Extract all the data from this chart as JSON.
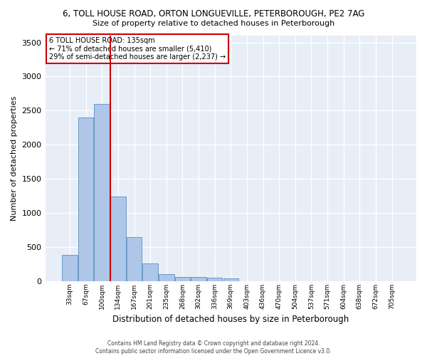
{
  "title_line1": "6, TOLL HOUSE ROAD, ORTON LONGUEVILLE, PETERBOROUGH, PE2 7AG",
  "title_line2": "Size of property relative to detached houses in Peterborough",
  "xlabel": "Distribution of detached houses by size in Peterborough",
  "ylabel": "Number of detached properties",
  "categories": [
    "33sqm",
    "67sqm",
    "100sqm",
    "134sqm",
    "167sqm",
    "201sqm",
    "235sqm",
    "268sqm",
    "302sqm",
    "336sqm",
    "369sqm",
    "403sqm",
    "436sqm",
    "470sqm",
    "504sqm",
    "537sqm",
    "571sqm",
    "604sqm",
    "638sqm",
    "672sqm",
    "705sqm"
  ],
  "values": [
    380,
    2400,
    2600,
    1240,
    640,
    255,
    100,
    60,
    57,
    45,
    32,
    0,
    0,
    0,
    0,
    0,
    0,
    0,
    0,
    0,
    0
  ],
  "bar_color": "#aec6e8",
  "bar_edge_color": "#5a8fc0",
  "annotation_line1": "6 TOLL HOUSE ROAD: 135sqm",
  "annotation_line2": "← 71% of detached houses are smaller (5,410)",
  "annotation_line3": "29% of semi-detached houses are larger (2,237) →",
  "vline_color": "#cc0000",
  "annotation_box_color": "#cc0000",
  "background_color": "#e8eef8",
  "footer_line1": "Contains HM Land Registry data © Crown copyright and database right 2024.",
  "footer_line2": "Contains public sector information licensed under the Open Government Licence v3.0.",
  "ylim": [
    0,
    3600
  ],
  "yticks": [
    0,
    500,
    1000,
    1500,
    2000,
    2500,
    3000,
    3500
  ]
}
